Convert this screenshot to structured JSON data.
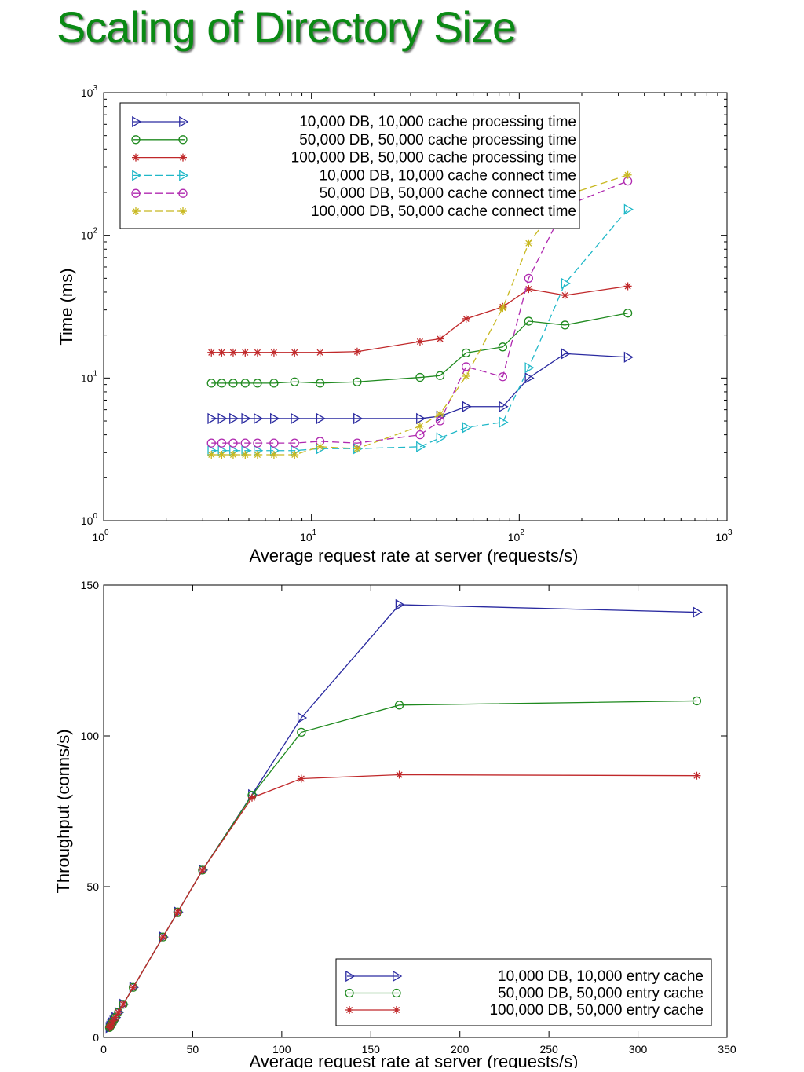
{
  "slide": {
    "title": "Scaling of Directory Size"
  },
  "chart_data": [
    {
      "type": "line",
      "xscale": "log",
      "yscale": "log",
      "xlim": [
        1,
        1000
      ],
      "ylim": [
        1,
        1000
      ],
      "xticks": [
        {
          "base": "10",
          "exp": "0"
        },
        {
          "base": "10",
          "exp": "1"
        },
        {
          "base": "10",
          "exp": "2"
        },
        {
          "base": "10",
          "exp": "3"
        }
      ],
      "yticks": [
        {
          "base": "10",
          "exp": "0"
        },
        {
          "base": "10",
          "exp": "1"
        },
        {
          "base": "10",
          "exp": "2"
        },
        {
          "base": "10",
          "exp": "3"
        }
      ],
      "xlabel": "Average request rate at server (requests/s)",
      "ylabel": "Time (ms)",
      "grid": false,
      "legend": "top-left",
      "series": [
        {
          "name": "10,000 DB, 10,000 cache processing time",
          "color": "#2a2aa0",
          "dash": "solid",
          "marker": "triangle-right",
          "x": [
            3.3,
            3.7,
            4.2,
            4.8,
            5.5,
            6.6,
            8.3,
            11,
            16.6,
            33.3,
            41.6,
            55.5,
            83.3,
            111,
            166,
            333
          ],
          "y": [
            5.2,
            5.2,
            5.2,
            5.2,
            5.2,
            5.2,
            5.2,
            5.2,
            5.2,
            5.2,
            5.4,
            6.3,
            6.3,
            10,
            14.8,
            14
          ]
        },
        {
          "name": "50,000 DB, 50,000 cache processing time",
          "color": "#1f8a1f",
          "dash": "solid",
          "marker": "circle",
          "x": [
            3.3,
            3.7,
            4.2,
            4.8,
            5.5,
            6.6,
            8.3,
            11,
            16.6,
            33.3,
            41.6,
            55.5,
            83.3,
            111,
            166,
            333
          ],
          "y": [
            9.2,
            9.2,
            9.2,
            9.2,
            9.2,
            9.2,
            9.4,
            9.2,
            9.4,
            10.1,
            10.4,
            15,
            16.5,
            25,
            23.5,
            28.5
          ]
        },
        {
          "name": "100,000 DB, 50,000 cache processing time",
          "color": "#c0282a",
          "dash": "solid",
          "marker": "star",
          "x": [
            3.3,
            3.7,
            4.2,
            4.8,
            5.5,
            6.6,
            8.3,
            11,
            16.6,
            33.3,
            41.6,
            55.5,
            83.3,
            111,
            166,
            333
          ],
          "y": [
            15.1,
            15.1,
            15.1,
            15.1,
            15.1,
            15.1,
            15.1,
            15.1,
            15.3,
            18,
            18.8,
            26,
            31.5,
            42,
            38,
            44
          ]
        },
        {
          "name": "10,000 DB, 10,000 cache connect time",
          "color": "#20b8c8",
          "dash": "dashed",
          "marker": "triangle-right",
          "x": [
            3.3,
            3.7,
            4.2,
            4.8,
            5.5,
            6.6,
            8.3,
            11,
            16.6,
            33.3,
            41.6,
            55.5,
            83.3,
            111,
            166,
            333
          ],
          "y": [
            3.1,
            3.1,
            3.1,
            3.1,
            3.1,
            3.1,
            3.1,
            3.2,
            3.2,
            3.3,
            3.8,
            4.5,
            4.9,
            11.8,
            46,
            152
          ]
        },
        {
          "name": "50,000 DB, 50,000 cache connect time",
          "color": "#b02ab0",
          "dash": "dashed",
          "marker": "circle",
          "x": [
            3.3,
            3.7,
            4.2,
            4.8,
            5.5,
            6.6,
            8.3,
            11,
            16.6,
            33.3,
            41.6,
            55.5,
            83.3,
            111,
            166,
            333
          ],
          "y": [
            3.5,
            3.5,
            3.5,
            3.5,
            3.5,
            3.5,
            3.5,
            3.6,
            3.5,
            4.0,
            5.0,
            12,
            10.2,
            50,
            160,
            240
          ]
        },
        {
          "name": "100,000 DB, 50,000 cache connect time",
          "color": "#c8b820",
          "dash": "dashed",
          "marker": "star",
          "x": [
            3.3,
            3.7,
            4.2,
            4.8,
            5.5,
            6.6,
            8.3,
            11,
            16.6,
            33.3,
            41.6,
            55.5,
            83.3,
            111,
            166,
            333
          ],
          "y": [
            2.9,
            2.9,
            2.9,
            2.9,
            2.9,
            2.9,
            2.9,
            3.3,
            3.2,
            4.6,
            5.6,
            10.3,
            31,
            88,
            190,
            265
          ]
        }
      ]
    },
    {
      "type": "line",
      "xscale": "linear",
      "yscale": "linear",
      "xlim": [
        0,
        350
      ],
      "ylim": [
        0,
        150
      ],
      "xticks": [
        "0",
        "50",
        "100",
        "150",
        "200",
        "250",
        "300",
        "350"
      ],
      "yticks": [
        "0",
        "50",
        "100",
        "150"
      ],
      "xlabel": "Average request rate at server (requests/s)",
      "ylabel": "Throughput (conns/s)",
      "grid": false,
      "legend": "bottom-right",
      "series": [
        {
          "name": "10,000 DB, 10,000 entry cache",
          "color": "#2a2aa0",
          "dash": "solid",
          "marker": "triangle-right",
          "x": [
            3.3,
            3.7,
            4.2,
            4.8,
            5.5,
            6.6,
            8.3,
            11,
            16.6,
            33.3,
            41.6,
            55.5,
            83.3,
            111,
            166,
            333
          ],
          "y": [
            3.3,
            3.7,
            4.2,
            4.8,
            5.5,
            6.6,
            8.3,
            11,
            16.6,
            33.3,
            41.6,
            55.5,
            80.5,
            106,
            143.5,
            141
          ]
        },
        {
          "name": "50,000 DB, 50,000 entry cache",
          "color": "#1f8a1f",
          "dash": "solid",
          "marker": "circle",
          "x": [
            3.3,
            3.7,
            4.2,
            4.8,
            5.5,
            6.6,
            8.3,
            11,
            16.6,
            33.3,
            41.6,
            55.5,
            83.3,
            111,
            166,
            333
          ],
          "y": [
            3.3,
            3.7,
            4.2,
            4.8,
            5.5,
            6.6,
            8.3,
            11,
            16.6,
            33.3,
            41.6,
            55.5,
            80.3,
            101.2,
            110.2,
            111.6
          ]
        },
        {
          "name": "100,000 DB, 50,000 entry cache",
          "color": "#c0282a",
          "dash": "solid",
          "marker": "star",
          "x": [
            3.3,
            3.7,
            4.2,
            4.8,
            5.5,
            6.6,
            8.3,
            11,
            16.6,
            33.3,
            41.6,
            55.5,
            83.3,
            111,
            166,
            333
          ],
          "y": [
            3.3,
            3.7,
            4.2,
            4.8,
            5.5,
            6.6,
            8.3,
            11,
            16.6,
            33.3,
            41.6,
            55.5,
            79.5,
            85.8,
            87.1,
            86.8
          ]
        }
      ]
    }
  ]
}
